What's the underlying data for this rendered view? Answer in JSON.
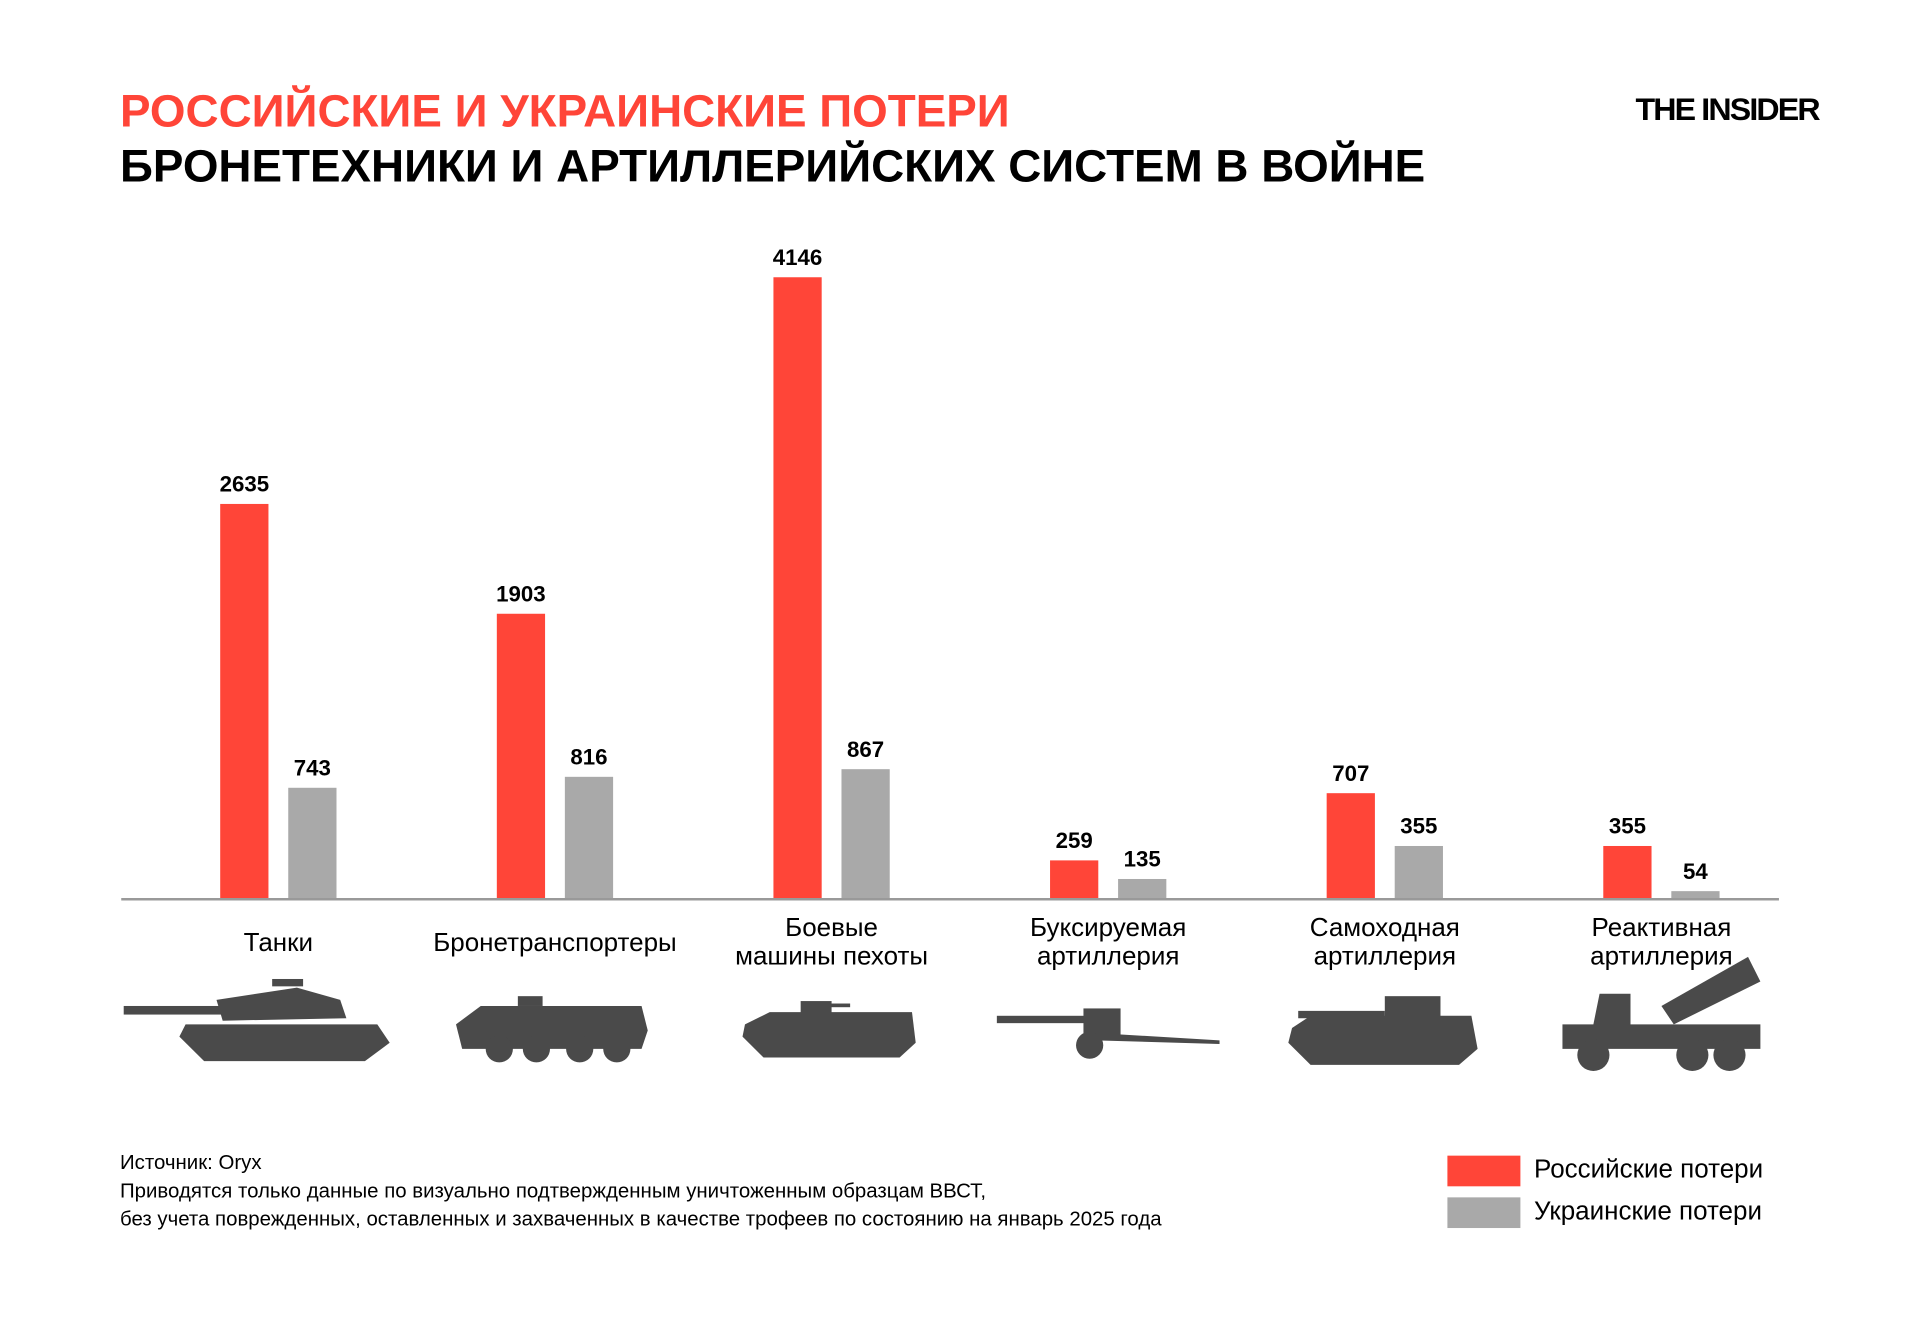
{
  "title_line1": "РОССИЙСКИЕ И УКРАИНСКИЕ ПОТЕРИ",
  "title_line2": "БРОНЕТЕХНИКИ И АРТИЛЛЕРИЙСКИХ СИСТЕМ В ВОЙНЕ",
  "logo": "THE INSIDER",
  "source": "Источник: Oryx",
  "note_line1": "Приводятся только данные по визуально подтвержденным уничтоженным образцам ВВСТ,",
  "note_line2": "без учета поврежденных, оставленных и захваченных в качестве трофеев по состоянию на январь 2025 года",
  "colors": {
    "russia": "#ff4538",
    "ukraine": "#a9a9a9",
    "icons": "#4a4a4a",
    "axis": "#999999"
  },
  "chart_data": {
    "type": "bar",
    "categories": [
      [
        "Танки"
      ],
      [
        "Бронетранспортеры"
      ],
      [
        "Боевые",
        "машины пехоты"
      ],
      [
        "Буксируемая",
        "артиллерия"
      ],
      [
        "Самоходная",
        "артиллерия"
      ],
      [
        "Реактивная",
        "артиллерия"
      ]
    ],
    "icons": [
      "tank-icon",
      "apc-icon",
      "ifv-icon",
      "towed-artillery-icon",
      "self-propelled-artillery-icon",
      "rocket-artillery-icon"
    ],
    "series": [
      {
        "name": "Российские потери",
        "values": [
          2635,
          1903,
          4146,
          259,
          707,
          355
        ]
      },
      {
        "name": "Украинские потери",
        "values": [
          743,
          816,
          867,
          135,
          355,
          54
        ]
      }
    ],
    "ylim": [
      0,
      4146
    ],
    "grid": false,
    "legend": "bottom-right",
    "data_labels": true
  }
}
